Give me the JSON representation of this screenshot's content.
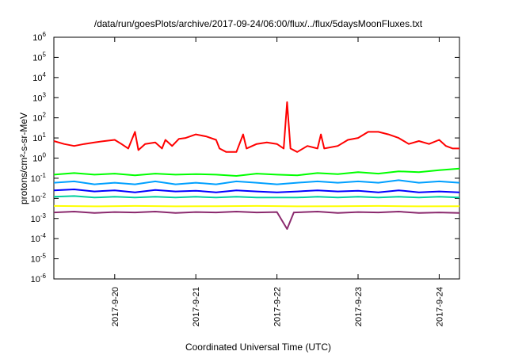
{
  "chart_data": {
    "type": "line",
    "title": "/data/run/goesPlots/archive/2017-09-24/06:00/flux/../flux/5daysMoonFluxes.txt",
    "xlabel": "Coordinated Universal Time (UTC)",
    "ylabel": "protons/cm²-s-sr-MeV",
    "y_scale": "log",
    "ylim": [
      1e-06,
      1000000.0
    ],
    "y_ticks": [
      {
        "value": 1e-06,
        "base": "10",
        "exp": "-6"
      },
      {
        "value": 1e-05,
        "base": "10",
        "exp": "-5"
      },
      {
        "value": 0.0001,
        "base": "10",
        "exp": "-4"
      },
      {
        "value": 0.001,
        "base": "10",
        "exp": "-3"
      },
      {
        "value": 0.01,
        "base": "10",
        "exp": "-2"
      },
      {
        "value": 0.1,
        "base": "10",
        "exp": "-1"
      },
      {
        "value": 1,
        "base": "10",
        "exp": "0"
      },
      {
        "value": 10,
        "base": "10",
        "exp": "1"
      },
      {
        "value": 100,
        "base": "10",
        "exp": "2"
      },
      {
        "value": 1000,
        "base": "10",
        "exp": "3"
      },
      {
        "value": 10000,
        "base": "10",
        "exp": "4"
      },
      {
        "value": 100000,
        "base": "10",
        "exp": "5"
      },
      {
        "value": 1000000,
        "base": "10",
        "exp": "6"
      }
    ],
    "xlim": [
      "2017-09-19T06:00",
      "2017-09-24T06:00"
    ],
    "x_ticks": [
      "2017-9-20",
      "2017-9-21",
      "2017-9-22",
      "2017-9-23",
      "2017-9-24"
    ],
    "grid": false,
    "legend": "none",
    "series": [
      {
        "color": "#ff0000",
        "points": [
          [
            "2017-09-19T06:00",
            7
          ],
          [
            "2017-09-19T09:00",
            5
          ],
          [
            "2017-09-19T12:00",
            4
          ],
          [
            "2017-09-19T15:00",
            5
          ],
          [
            "2017-09-19T18:00",
            6
          ],
          [
            "2017-09-19T21:00",
            7
          ],
          [
            "2017-09-20T00:00",
            8
          ],
          [
            "2017-09-20T02:00",
            5
          ],
          [
            "2017-09-20T04:00",
            3
          ],
          [
            "2017-09-20T06:00",
            20
          ],
          [
            "2017-09-20T07:00",
            2.5
          ],
          [
            "2017-09-20T09:00",
            5
          ],
          [
            "2017-09-20T12:00",
            6
          ],
          [
            "2017-09-20T14:00",
            3
          ],
          [
            "2017-09-20T15:00",
            8
          ],
          [
            "2017-09-20T17:00",
            4
          ],
          [
            "2017-09-20T19:00",
            9
          ],
          [
            "2017-09-20T21:00",
            10
          ],
          [
            "2017-09-21T00:00",
            15
          ],
          [
            "2017-09-21T03:00",
            12
          ],
          [
            "2017-09-21T06:00",
            8
          ],
          [
            "2017-09-21T07:00",
            3
          ],
          [
            "2017-09-21T09:00",
            2
          ],
          [
            "2017-09-21T12:00",
            2
          ],
          [
            "2017-09-21T14:00",
            15
          ],
          [
            "2017-09-21T15:00",
            3
          ],
          [
            "2017-09-21T18:00",
            5
          ],
          [
            "2017-09-21T21:00",
            6
          ],
          [
            "2017-09-22T00:00",
            5
          ],
          [
            "2017-09-22T02:00",
            3
          ],
          [
            "2017-09-22T03:00",
            600
          ],
          [
            "2017-09-22T04:00",
            3
          ],
          [
            "2017-09-22T06:00",
            2
          ],
          [
            "2017-09-22T09:00",
            4
          ],
          [
            "2017-09-22T12:00",
            3
          ],
          [
            "2017-09-22T13:00",
            15
          ],
          [
            "2017-09-22T14:00",
            3
          ],
          [
            "2017-09-22T18:00",
            4
          ],
          [
            "2017-09-22T21:00",
            8
          ],
          [
            "2017-09-23T00:00",
            10
          ],
          [
            "2017-09-23T03:00",
            20
          ],
          [
            "2017-09-23T06:00",
            20
          ],
          [
            "2017-09-23T09:00",
            15
          ],
          [
            "2017-09-23T12:00",
            10
          ],
          [
            "2017-09-23T15:00",
            5
          ],
          [
            "2017-09-23T18:00",
            7
          ],
          [
            "2017-09-23T21:00",
            5
          ],
          [
            "2017-09-24T00:00",
            8
          ],
          [
            "2017-09-24T02:00",
            4
          ],
          [
            "2017-09-24T04:00",
            3
          ],
          [
            "2017-09-24T06:00",
            3
          ]
        ]
      },
      {
        "color": "#00ff00",
        "points": [
          [
            "2017-09-19T06:00",
            0.15
          ],
          [
            "2017-09-19T12:00",
            0.18
          ],
          [
            "2017-09-19T18:00",
            0.15
          ],
          [
            "2017-09-20T00:00",
            0.17
          ],
          [
            "2017-09-20T06:00",
            0.14
          ],
          [
            "2017-09-20T12:00",
            0.17
          ],
          [
            "2017-09-20T18:00",
            0.15
          ],
          [
            "2017-09-21T00:00",
            0.16
          ],
          [
            "2017-09-21T06:00",
            0.15
          ],
          [
            "2017-09-21T12:00",
            0.13
          ],
          [
            "2017-09-21T18:00",
            0.17
          ],
          [
            "2017-09-22T00:00",
            0.15
          ],
          [
            "2017-09-22T06:00",
            0.14
          ],
          [
            "2017-09-22T12:00",
            0.18
          ],
          [
            "2017-09-22T18:00",
            0.16
          ],
          [
            "2017-09-23T00:00",
            0.2
          ],
          [
            "2017-09-23T06:00",
            0.17
          ],
          [
            "2017-09-23T12:00",
            0.22
          ],
          [
            "2017-09-23T18:00",
            0.2
          ],
          [
            "2017-09-24T00:00",
            0.25
          ],
          [
            "2017-09-24T06:00",
            0.3
          ]
        ]
      },
      {
        "color": "#00a0ff",
        "points": [
          [
            "2017-09-19T06:00",
            0.06
          ],
          [
            "2017-09-19T12:00",
            0.07
          ],
          [
            "2017-09-19T18:00",
            0.05
          ],
          [
            "2017-09-20T00:00",
            0.06
          ],
          [
            "2017-09-20T06:00",
            0.05
          ],
          [
            "2017-09-20T12:00",
            0.07
          ],
          [
            "2017-09-20T18:00",
            0.05
          ],
          [
            "2017-09-21T00:00",
            0.06
          ],
          [
            "2017-09-21T06:00",
            0.05
          ],
          [
            "2017-09-21T12:00",
            0.07
          ],
          [
            "2017-09-21T18:00",
            0.06
          ],
          [
            "2017-09-22T00:00",
            0.05
          ],
          [
            "2017-09-22T06:00",
            0.06
          ],
          [
            "2017-09-22T12:00",
            0.07
          ],
          [
            "2017-09-22T18:00",
            0.06
          ],
          [
            "2017-09-23T00:00",
            0.07
          ],
          [
            "2017-09-23T06:00",
            0.06
          ],
          [
            "2017-09-23T12:00",
            0.08
          ],
          [
            "2017-09-23T18:00",
            0.06
          ],
          [
            "2017-09-24T00:00",
            0.07
          ],
          [
            "2017-09-24T06:00",
            0.06
          ]
        ]
      },
      {
        "color": "#0000ff",
        "points": [
          [
            "2017-09-19T06:00",
            0.025
          ],
          [
            "2017-09-19T12:00",
            0.028
          ],
          [
            "2017-09-19T18:00",
            0.022
          ],
          [
            "2017-09-20T00:00",
            0.025
          ],
          [
            "2017-09-20T06:00",
            0.02
          ],
          [
            "2017-09-20T12:00",
            0.026
          ],
          [
            "2017-09-20T18:00",
            0.022
          ],
          [
            "2017-09-21T00:00",
            0.024
          ],
          [
            "2017-09-21T06:00",
            0.02
          ],
          [
            "2017-09-21T12:00",
            0.025
          ],
          [
            "2017-09-21T18:00",
            0.022
          ],
          [
            "2017-09-22T00:00",
            0.02
          ],
          [
            "2017-09-22T06:00",
            0.022
          ],
          [
            "2017-09-22T12:00",
            0.025
          ],
          [
            "2017-09-22T18:00",
            0.022
          ],
          [
            "2017-09-23T00:00",
            0.024
          ],
          [
            "2017-09-23T06:00",
            0.02
          ],
          [
            "2017-09-23T12:00",
            0.025
          ],
          [
            "2017-09-23T18:00",
            0.02
          ],
          [
            "2017-09-24T00:00",
            0.022
          ],
          [
            "2017-09-24T06:00",
            0.02
          ]
        ]
      },
      {
        "color": "#00d0a0",
        "points": [
          [
            "2017-09-19T06:00",
            0.012
          ],
          [
            "2017-09-19T12:00",
            0.013
          ],
          [
            "2017-09-19T18:00",
            0.011
          ],
          [
            "2017-09-20T00:00",
            0.012
          ],
          [
            "2017-09-20T06:00",
            0.011
          ],
          [
            "2017-09-20T12:00",
            0.012
          ],
          [
            "2017-09-20T18:00",
            0.011
          ],
          [
            "2017-09-21T00:00",
            0.012
          ],
          [
            "2017-09-21T06:00",
            0.011
          ],
          [
            "2017-09-21T12:00",
            0.012
          ],
          [
            "2017-09-21T18:00",
            0.011
          ],
          [
            "2017-09-22T00:00",
            0.011
          ],
          [
            "2017-09-22T06:00",
            0.011
          ],
          [
            "2017-09-22T12:00",
            0.012
          ],
          [
            "2017-09-22T18:00",
            0.011
          ],
          [
            "2017-09-23T00:00",
            0.012
          ],
          [
            "2017-09-23T06:00",
            0.011
          ],
          [
            "2017-09-23T12:00",
            0.012
          ],
          [
            "2017-09-23T18:00",
            0.011
          ],
          [
            "2017-09-24T00:00",
            0.012
          ],
          [
            "2017-09-24T06:00",
            0.011
          ]
        ]
      },
      {
        "color": "#ffff00",
        "points": [
          [
            "2017-09-19T06:00",
            0.0042
          ],
          [
            "2017-09-19T18:00",
            0.004
          ],
          [
            "2017-09-20T06:00",
            0.0042
          ],
          [
            "2017-09-20T18:00",
            0.004
          ],
          [
            "2017-09-21T06:00",
            0.0041
          ],
          [
            "2017-09-21T18:00",
            0.0042
          ],
          [
            "2017-09-22T06:00",
            0.004
          ],
          [
            "2017-09-22T18:00",
            0.0041
          ],
          [
            "2017-09-23T06:00",
            0.0042
          ],
          [
            "2017-09-23T18:00",
            0.004
          ],
          [
            "2017-09-24T06:00",
            0.0041
          ]
        ]
      },
      {
        "color": "#8b2a6e",
        "points": [
          [
            "2017-09-19T06:00",
            0.002
          ],
          [
            "2017-09-19T12:00",
            0.0022
          ],
          [
            "2017-09-19T18:00",
            0.0019
          ],
          [
            "2017-09-20T00:00",
            0.0021
          ],
          [
            "2017-09-20T06:00",
            0.002
          ],
          [
            "2017-09-20T12:00",
            0.0022
          ],
          [
            "2017-09-20T18:00",
            0.0019
          ],
          [
            "2017-09-21T00:00",
            0.0021
          ],
          [
            "2017-09-21T06:00",
            0.002
          ],
          [
            "2017-09-21T12:00",
            0.0022
          ],
          [
            "2017-09-21T18:00",
            0.002
          ],
          [
            "2017-09-22T00:00",
            0.0021
          ],
          [
            "2017-09-22T03:00",
            0.0003
          ],
          [
            "2017-09-22T05:00",
            0.002
          ],
          [
            "2017-09-22T12:00",
            0.0022
          ],
          [
            "2017-09-22T18:00",
            0.0019
          ],
          [
            "2017-09-23T00:00",
            0.0021
          ],
          [
            "2017-09-23T06:00",
            0.002
          ],
          [
            "2017-09-23T12:00",
            0.0022
          ],
          [
            "2017-09-23T18:00",
            0.0019
          ],
          [
            "2017-09-24T00:00",
            0.002
          ],
          [
            "2017-09-24T06:00",
            0.0019
          ]
        ]
      }
    ]
  }
}
